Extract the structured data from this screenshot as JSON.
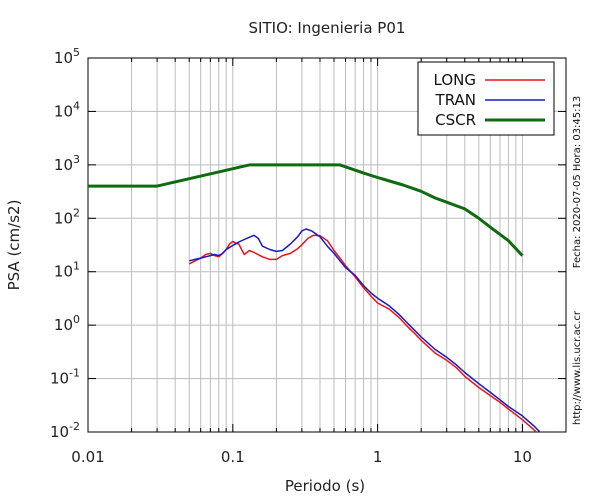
{
  "chart_data": {
    "type": "line",
    "title": "SITIO: Ingenieria P01",
    "xlabel": "Periodo (s)",
    "ylabel": "PSA (cm/s2)",
    "x_scale": "log",
    "y_scale": "log",
    "xlim": [
      0.01,
      20
    ],
    "ylim": [
      0.01,
      100000
    ],
    "grid": true,
    "legend_position": "top-right",
    "x_ticks": [
      {
        "value": 0.01,
        "label": "0.01"
      },
      {
        "value": 0.1,
        "label": "0.1"
      },
      {
        "value": 1,
        "label": "1"
      },
      {
        "value": 10,
        "label": "10"
      }
    ],
    "y_ticks": [
      {
        "value": 0.01,
        "base": "10",
        "exp": "-2"
      },
      {
        "value": 0.1,
        "base": "10",
        "exp": "-1"
      },
      {
        "value": 1,
        "base": "10",
        "exp": "0"
      },
      {
        "value": 10,
        "base": "10",
        "exp": "1"
      },
      {
        "value": 100,
        "base": "10",
        "exp": "2"
      },
      {
        "value": 1000,
        "base": "10",
        "exp": "3"
      },
      {
        "value": 10000,
        "base": "10",
        "exp": "4"
      },
      {
        "value": 100000,
        "base": "10",
        "exp": "5"
      }
    ],
    "series": [
      {
        "name": "LONG",
        "color": "#e8141c",
        "points": [
          [
            0.05,
            14
          ],
          [
            0.055,
            16
          ],
          [
            0.06,
            18
          ],
          [
            0.065,
            21
          ],
          [
            0.07,
            22
          ],
          [
            0.075,
            20
          ],
          [
            0.08,
            19
          ],
          [
            0.085,
            22
          ],
          [
            0.09,
            26
          ],
          [
            0.095,
            33
          ],
          [
            0.1,
            37
          ],
          [
            0.105,
            34
          ],
          [
            0.11,
            33
          ],
          [
            0.115,
            26
          ],
          [
            0.12,
            21
          ],
          [
            0.13,
            25
          ],
          [
            0.14,
            23
          ],
          [
            0.16,
            19
          ],
          [
            0.18,
            17
          ],
          [
            0.2,
            17
          ],
          [
            0.22,
            20
          ],
          [
            0.25,
            22
          ],
          [
            0.28,
            27
          ],
          [
            0.3,
            32
          ],
          [
            0.33,
            42
          ],
          [
            0.36,
            48
          ],
          [
            0.4,
            47
          ],
          [
            0.45,
            38
          ],
          [
            0.5,
            25
          ],
          [
            0.55,
            18
          ],
          [
            0.6,
            13
          ],
          [
            0.7,
            8
          ],
          [
            0.8,
            5
          ],
          [
            0.9,
            3.5
          ],
          [
            1.0,
            2.6
          ],
          [
            1.2,
            2.0
          ],
          [
            1.4,
            1.4
          ],
          [
            1.6,
            0.95
          ],
          [
            1.8,
            0.7
          ],
          [
            2.0,
            0.52
          ],
          [
            2.5,
            0.3
          ],
          [
            3.0,
            0.22
          ],
          [
            3.5,
            0.16
          ],
          [
            4.0,
            0.11
          ],
          [
            5.0,
            0.068
          ],
          [
            6.0,
            0.048
          ],
          [
            7.0,
            0.036
          ],
          [
            8.0,
            0.027
          ],
          [
            10.0,
            0.017
          ],
          [
            12.0,
            0.011
          ],
          [
            14.0,
            0.0075
          ]
        ]
      },
      {
        "name": "TRAN",
        "color": "#1818c8",
        "points": [
          [
            0.05,
            16
          ],
          [
            0.055,
            17
          ],
          [
            0.06,
            18
          ],
          [
            0.065,
            19
          ],
          [
            0.07,
            20
          ],
          [
            0.075,
            21
          ],
          [
            0.08,
            20
          ],
          [
            0.085,
            22
          ],
          [
            0.09,
            26
          ],
          [
            0.1,
            31
          ],
          [
            0.11,
            36
          ],
          [
            0.12,
            40
          ],
          [
            0.13,
            44
          ],
          [
            0.14,
            48
          ],
          [
            0.15,
            42
          ],
          [
            0.16,
            30
          ],
          [
            0.18,
            26
          ],
          [
            0.2,
            24
          ],
          [
            0.22,
            25
          ],
          [
            0.25,
            33
          ],
          [
            0.28,
            45
          ],
          [
            0.3,
            58
          ],
          [
            0.32,
            63
          ],
          [
            0.35,
            58
          ],
          [
            0.4,
            45
          ],
          [
            0.45,
            30
          ],
          [
            0.5,
            22
          ],
          [
            0.55,
            16
          ],
          [
            0.6,
            12
          ],
          [
            0.7,
            8.5
          ],
          [
            0.8,
            5.5
          ],
          [
            0.9,
            4
          ],
          [
            1.0,
            3.2
          ],
          [
            1.2,
            2.3
          ],
          [
            1.4,
            1.6
          ],
          [
            1.6,
            1.1
          ],
          [
            1.8,
            0.8
          ],
          [
            2.0,
            0.6
          ],
          [
            2.5,
            0.35
          ],
          [
            3.0,
            0.25
          ],
          [
            3.5,
            0.18
          ],
          [
            4.0,
            0.13
          ],
          [
            5.0,
            0.08
          ],
          [
            6.0,
            0.055
          ],
          [
            7.0,
            0.04
          ],
          [
            8.0,
            0.03
          ],
          [
            10.0,
            0.02
          ],
          [
            12.0,
            0.013
          ],
          [
            14.0,
            0.0085
          ]
        ]
      },
      {
        "name": "CSCR",
        "color": "#106a10",
        "points": [
          [
            0.01,
            400
          ],
          [
            0.03,
            400
          ],
          [
            0.13,
            1000
          ],
          [
            0.55,
            1000
          ],
          [
            0.8,
            700
          ],
          [
            1.0,
            580
          ],
          [
            1.5,
            420
          ],
          [
            2.0,
            320
          ],
          [
            2.5,
            240
          ],
          [
            3.0,
            200
          ],
          [
            4.0,
            150
          ],
          [
            5.0,
            100
          ],
          [
            6.0,
            68
          ],
          [
            8.0,
            38
          ],
          [
            10.0,
            20
          ]
        ]
      }
    ]
  },
  "side_labels": {
    "timestamp": "Fecha: 2020-07-05  Hora: 03:45:13",
    "url": "http://www.lis.ucr.ac.cr"
  }
}
